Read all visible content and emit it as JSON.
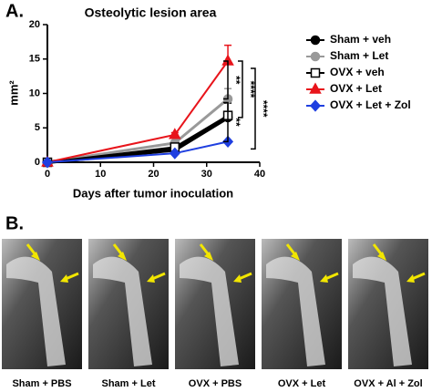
{
  "panel_a": {
    "label": "A."
  },
  "chart_data": {
    "type": "line",
    "title": "Osteolytic lesion area",
    "xlabel": "Days after tumor inoculation",
    "ylabel": "mm²",
    "x": [
      0,
      24,
      34
    ],
    "xlim": [
      0,
      40
    ],
    "xticks": [
      0,
      10,
      20,
      30,
      40
    ],
    "ylim": [
      0,
      20
    ],
    "yticks": [
      0,
      5,
      10,
      15,
      20
    ],
    "legend": "right",
    "series": [
      {
        "name": "Sham + veh",
        "color": "#000000",
        "marker": "circle",
        "values": [
          0,
          1.8,
          6.5
        ],
        "errors": [
          null,
          0.3,
          null
        ]
      },
      {
        "name": "Sham + Let",
        "color": "#999999",
        "marker": "circle",
        "values": [
          0,
          2.8,
          9.2
        ],
        "errors": [
          null,
          0.3,
          1.5
        ]
      },
      {
        "name": "OVX + veh",
        "color": "#000000",
        "marker": "square-open",
        "values": [
          0,
          2.2,
          6.8
        ],
        "errors": [
          null,
          0.3,
          1.8
        ]
      },
      {
        "name": "OVX + Let",
        "color": "#e8141b",
        "marker": "triangle",
        "values": [
          0,
          4.0,
          14.7
        ],
        "errors": [
          null,
          0.3,
          2.3
        ]
      },
      {
        "name": "OVX + Let + Zol",
        "color": "#1f3fe0",
        "marker": "diamond",
        "values": [
          0,
          1.3,
          3.0
        ],
        "errors": [
          null,
          null,
          null
        ]
      }
    ],
    "annotations": [
      "**",
      "****",
      "**",
      "****"
    ]
  },
  "panel_b": {
    "label": "B.",
    "images": [
      "Sham + PBS",
      "Sham + Let",
      "OVX + PBS",
      "OVX + Let",
      "OVX + Al + Zol"
    ]
  }
}
